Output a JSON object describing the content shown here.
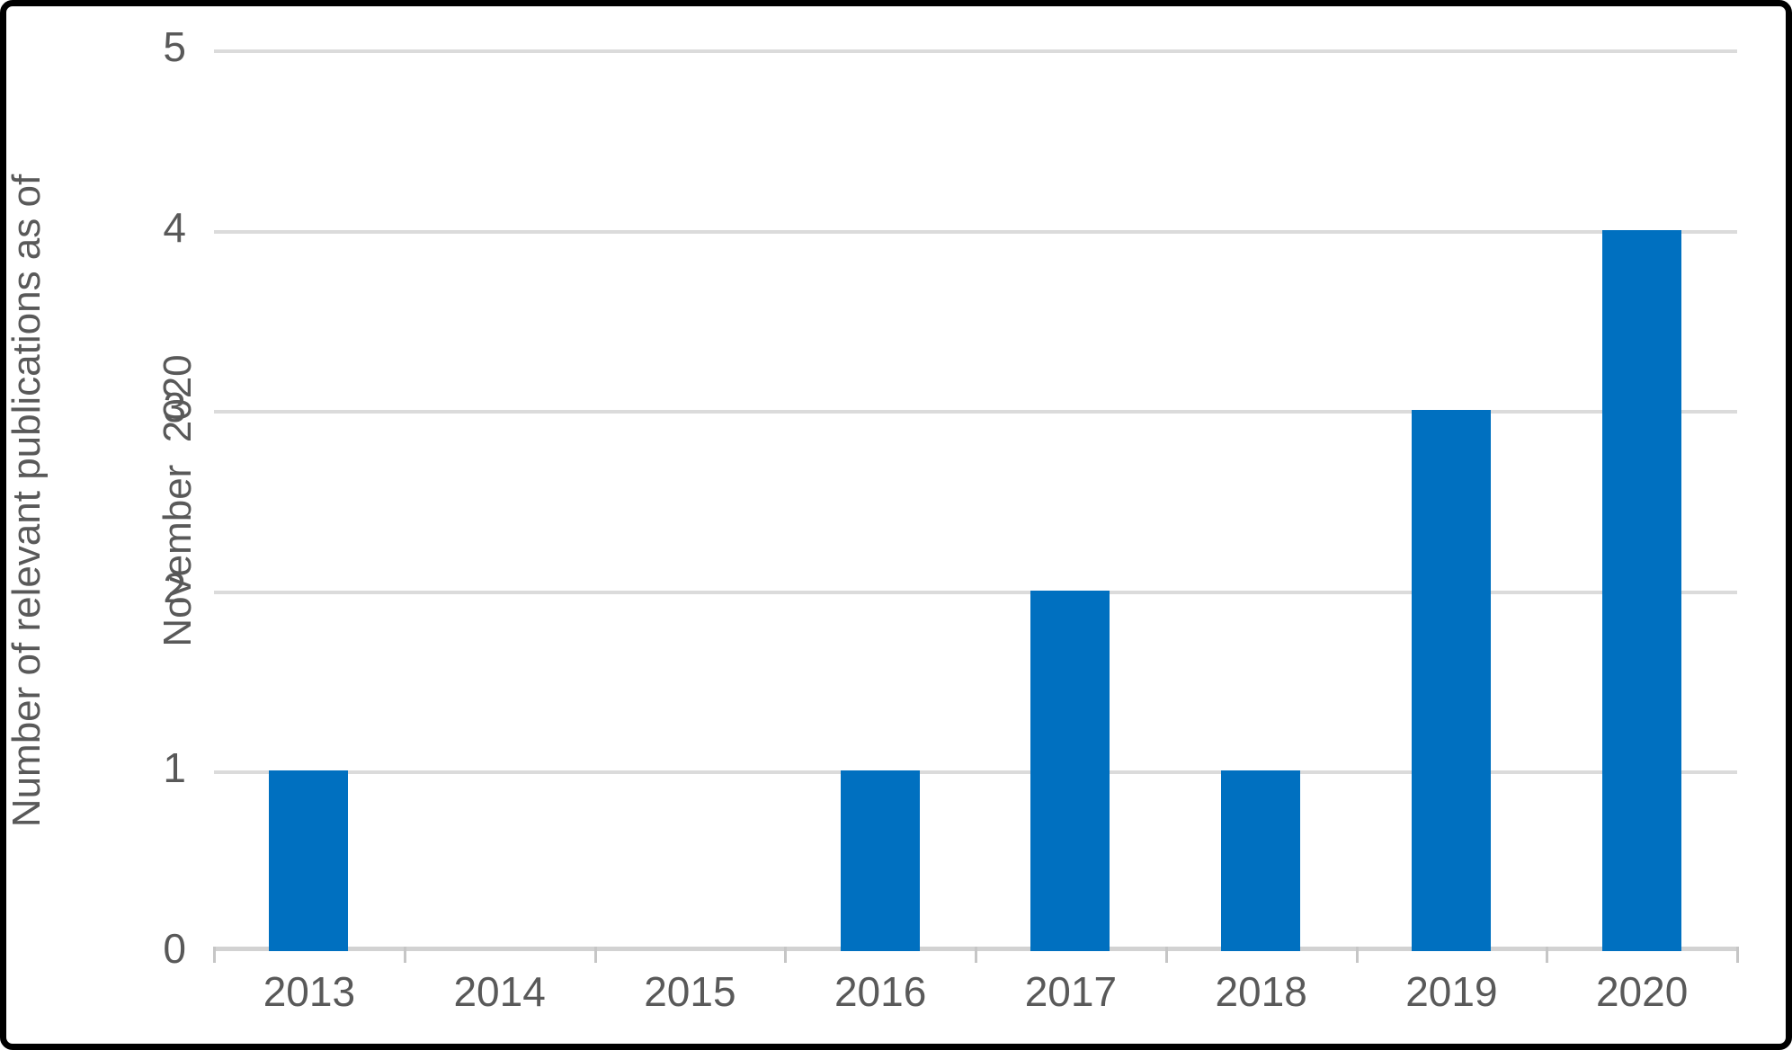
{
  "chart_data": {
    "type": "bar",
    "title": "",
    "categories": [
      "2013",
      "2014",
      "2015",
      "2016",
      "2017",
      "2018",
      "2019",
      "2020"
    ],
    "values": [
      1,
      0,
      0,
      1,
      2,
      1,
      3,
      4
    ],
    "xlabel": "",
    "ylabel_lines": [
      "Number of relevant publications as of",
      "November  2020"
    ],
    "y_ticks": [
      "0",
      "1",
      "2",
      "3",
      "4",
      "5"
    ],
    "ylim": [
      0,
      5
    ],
    "grid": "horizontal",
    "legend_position": "none",
    "bar_gap_ratio": 0.58,
    "colors": {
      "bar": "#0070C0",
      "gridline": "#DBDBDB",
      "axis_line": "#D2D2D2",
      "tick_mark": "#C6C6C6",
      "text": "#595959",
      "frame_border": "#000000",
      "background": "#FFFFFF"
    }
  }
}
